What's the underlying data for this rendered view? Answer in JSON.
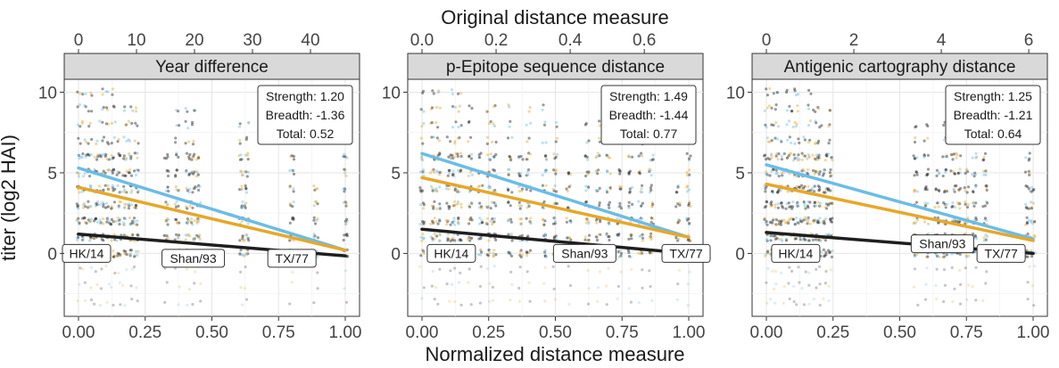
{
  "chart_data": {
    "type": "scatter",
    "top_axis_title": "Original distance measure",
    "bottom_axis_title": "Normalized distance measure",
    "y_axis_title": "titer (log2 HAI)",
    "ylim": [
      -3.9,
      10.8
    ],
    "y_ticks": [
      0,
      5,
      10
    ],
    "y_tick_labels": [
      "0",
      "5",
      "10"
    ],
    "x_normalized_ticks": [
      0,
      0.25,
      0.5,
      0.75,
      1
    ],
    "x_normalized_tick_labels": [
      "0.00",
      "0.25",
      "0.50",
      "0.75",
      "1.00"
    ],
    "grid": true,
    "colors": {
      "black": "#1e1e1e",
      "orange": "#e6a82a",
      "blue": "#6bbde6",
      "strip_bg": "#d9d9d9"
    },
    "panels": [
      {
        "title": "Year difference",
        "original_max": 46,
        "original_ticks": [
          0,
          10,
          20,
          30,
          40
        ],
        "original_tick_labels": [
          "0",
          "10",
          "20",
          "30",
          "40"
        ],
        "stats": {
          "strength": "Strength: 1.20",
          "breadth": "Breadth: -1.36",
          "total": "Total: 0.52"
        },
        "series": [
          {
            "color": "blue",
            "x": [
              0,
              1
            ],
            "y": [
              5.3,
              0.2
            ]
          },
          {
            "color": "orange",
            "x": [
              0,
              1
            ],
            "y": [
              4.1,
              0.2
            ]
          },
          {
            "color": "black",
            "x": [
              0,
              1
            ],
            "y": [
              1.2,
              -0.15
            ]
          }
        ],
        "strains": [
          {
            "label": "HK/14",
            "x": 0.03,
            "y": 0
          },
          {
            "label": "Shan/93",
            "x": 0.43,
            "y": -0.3
          },
          {
            "label": "TX/77",
            "x": 0.8,
            "y": -0.3
          }
        ],
        "point_columns": [
          0,
          0.022,
          0.043,
          0.065,
          0.087,
          0.109,
          0.13,
          0.152,
          0.174,
          0.196,
          0.217,
          0.33,
          0.37,
          0.41,
          0.43,
          0.45,
          0.61,
          0.63,
          0.8,
          0.89,
          1.0
        ]
      },
      {
        "title": "p-Epitope sequence distance",
        "original_max": 0.72,
        "original_ticks": [
          0,
          0.2,
          0.4,
          0.6
        ],
        "original_tick_labels": [
          "0.0",
          "0.2",
          "0.4",
          "0.6"
        ],
        "stats": {
          "strength": "Strength: 1.49",
          "breadth": "Breadth: -1.44",
          "total": "Total: 0.77"
        },
        "series": [
          {
            "color": "blue",
            "x": [
              0,
              1
            ],
            "y": [
              6.2,
              1.0
            ]
          },
          {
            "color": "orange",
            "x": [
              0,
              1
            ],
            "y": [
              4.7,
              1.0
            ]
          },
          {
            "color": "black",
            "x": [
              0,
              1
            ],
            "y": [
              1.5,
              0.0
            ]
          }
        ],
        "strains": [
          {
            "label": "HK/14",
            "x": 0.11,
            "y": 0
          },
          {
            "label": "Shan/93",
            "x": 0.61,
            "y": 0
          },
          {
            "label": "TX/77",
            "x": 0.99,
            "y": 0
          }
        ],
        "point_columns": [
          0,
          0.04,
          0.06,
          0.1,
          0.12,
          0.14,
          0.18,
          0.22,
          0.25,
          0.27,
          0.33,
          0.37,
          0.4,
          0.46,
          0.5,
          0.55,
          0.62,
          0.66,
          0.7,
          0.74,
          0.78,
          0.82,
          0.86,
          0.96,
          1.0
        ]
      },
      {
        "title": "Antigenic cartography distance",
        "original_max": 6.1,
        "original_ticks": [
          0,
          2,
          4,
          6
        ],
        "original_tick_labels": [
          "0",
          "2",
          "4",
          "6"
        ],
        "stats": {
          "strength": "Strength: 1.25",
          "breadth": "Breadth: -1.21",
          "total": "Total: 0.64"
        },
        "series": [
          {
            "color": "blue",
            "x": [
              0,
              1
            ],
            "y": [
              5.5,
              0.9
            ]
          },
          {
            "color": "orange",
            "x": [
              0,
              1
            ],
            "y": [
              4.3,
              0.8
            ]
          },
          {
            "color": "black",
            "x": [
              0,
              1
            ],
            "y": [
              1.3,
              0.0
            ]
          }
        ],
        "strains": [
          {
            "label": "HK/14",
            "x": 0.11,
            "y": 0
          },
          {
            "label": "Shan/93",
            "x": 0.66,
            "y": 0.6
          },
          {
            "label": "TX/77",
            "x": 0.88,
            "y": 0
          }
        ],
        "point_columns": [
          0,
          0.02,
          0.04,
          0.06,
          0.08,
          0.1,
          0.12,
          0.14,
          0.16,
          0.18,
          0.2,
          0.22,
          0.24,
          0.56,
          0.6,
          0.64,
          0.67,
          0.7,
          0.72,
          0.75,
          0.78,
          0.82,
          0.98,
          1.0
        ]
      }
    ]
  }
}
